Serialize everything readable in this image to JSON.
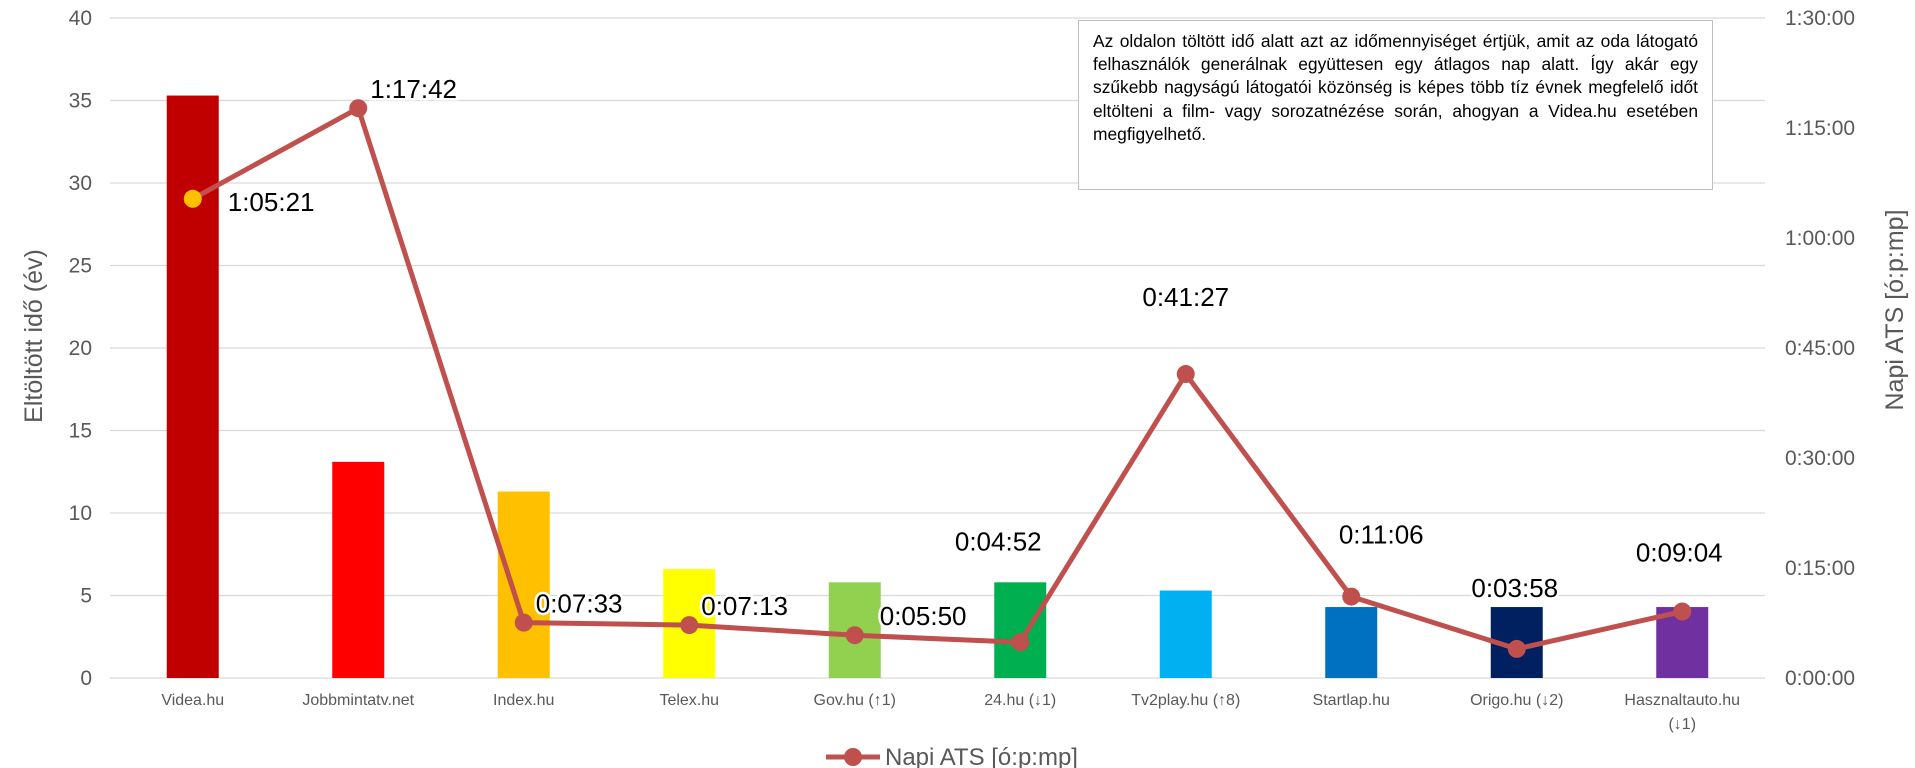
{
  "chart_data": {
    "type": "bar",
    "categories": [
      "Videa.hu",
      "Jobbmintatv.net",
      "Index.hu",
      "Telex.hu",
      "Gov.hu (↑1)",
      "24.hu (↓1)",
      "Tv2play.hu (↑8)",
      "Startlap.hu",
      "Origo.hu (↓2)",
      "Hasznaltauto.hu (↓1)"
    ],
    "bar_values": [
      35.3,
      13.1,
      11.3,
      6.6,
      5.8,
      5.8,
      5.3,
      4.3,
      4.3,
      4.3
    ],
    "bar_colors": [
      "#C00000",
      "#FF0000",
      "#FFC000",
      "#FFFF00",
      "#92D050",
      "#00B050",
      "#00B0F0",
      "#0070C0",
      "#002060",
      "#7030A0"
    ],
    "ylabel": "Eltöltött idő (év)",
    "ylim": [
      0,
      40
    ],
    "yticks": [
      "0",
      "5",
      "10",
      "15",
      "20",
      "25",
      "30",
      "35",
      "40"
    ],
    "y2label": "Napi ATS [ó:p:mp]",
    "y2lim_minutes": [
      0,
      90
    ],
    "y2ticks": [
      "0:00:00",
      "0:15:00",
      "0:30:00",
      "0:45:00",
      "1:00:00",
      "1:15:00",
      "1:30:00"
    ],
    "line_series": {
      "name": "Napi ATS [ó:p:mp]",
      "color": "#C0504D",
      "highlight_color": "#FFC000",
      "highlight_index": 0,
      "labels": [
        "1:05:21",
        "1:17:42",
        "0:07:33",
        "0:07:13",
        "0:05:50",
        "0:04:52",
        "0:41:27",
        "0:11:06",
        "0:03:58",
        "0:09:04"
      ]
    },
    "grid": true,
    "legend_position": "bottom",
    "note": "Az oldalon töltött idő alatt azt az időmennyiséget értjük, amit az oda látogató felhasználók generálnak együttesen egy átlagos nap alatt. Így akár egy szűkebb nagyságú látogatói közönség is képes több tíz évnek megfelelő időt eltölteni a film- vagy sorozatnézése során, ahogyan a Videa.hu esetében megfigyelhető."
  }
}
